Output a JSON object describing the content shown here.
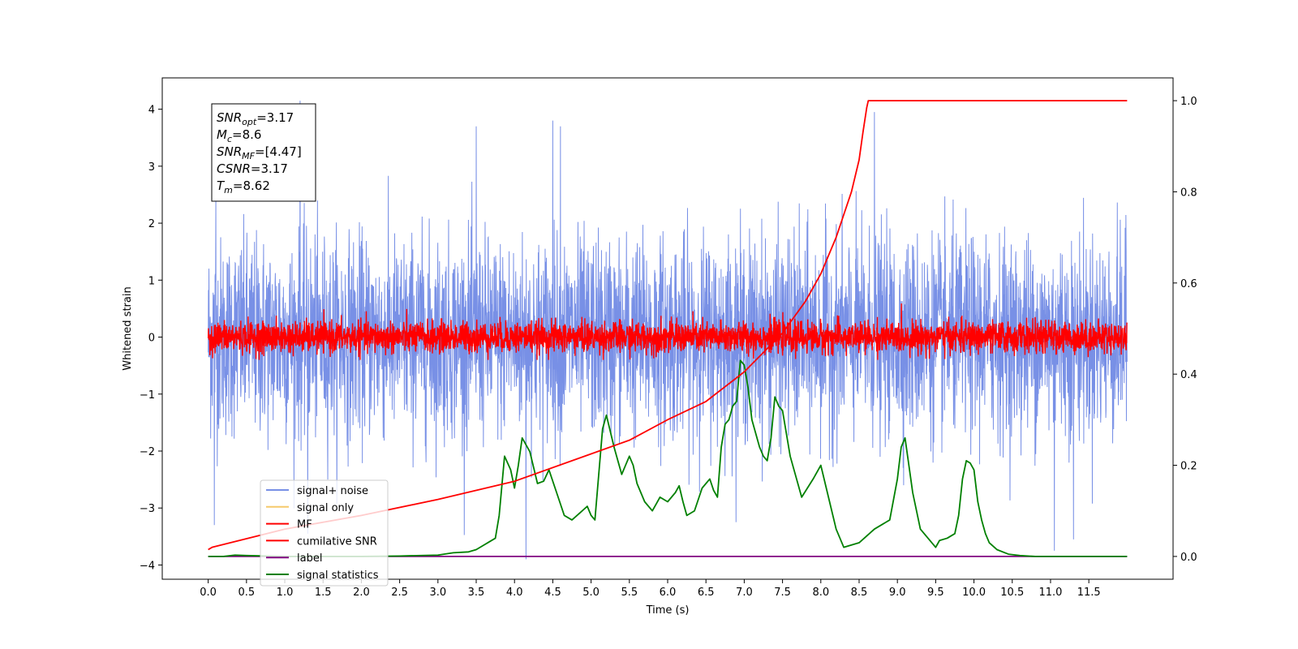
{
  "chart_data": {
    "type": "line",
    "xlabel": "Time (s)",
    "ylabel": "Whitened strain",
    "xlim": [
      -0.6,
      12.6
    ],
    "ylim": [
      -4.25,
      4.55
    ],
    "ylim_right": [
      -0.05,
      1.05
    ],
    "x_ticks": [
      "0.0",
      "0.5",
      "1.0",
      "1.5",
      "2.0",
      "2.5",
      "3.0",
      "3.5",
      "4.0",
      "4.5",
      "5.0",
      "5.5",
      "6.0",
      "6.5",
      "7.0",
      "7.5",
      "8.0",
      "8.5",
      "9.0",
      "9.5",
      "10.0",
      "10.5",
      "11.0",
      "11.5"
    ],
    "y_ticks_left": [
      "4",
      "3",
      "2",
      "1",
      "0",
      "−1",
      "−2",
      "−3",
      "−4"
    ],
    "y_ticks_right": [
      "1.0",
      "0.8",
      "0.6",
      "0.4",
      "0.2",
      "0.0"
    ],
    "annotation": [
      {
        "main": "SNR",
        "sub": "opt",
        "value": "=3.17"
      },
      {
        "main": "M",
        "sub": "c",
        "value": "=8.6"
      },
      {
        "main": "SNR",
        "sub": "MF",
        "value": "=[4.47]"
      },
      {
        "main": "CSNR",
        "sub": "",
        "value": "=3.17"
      },
      {
        "main": "T",
        "sub": "m",
        "value": "=8.62"
      }
    ],
    "legend": {
      "placement": "lower-left",
      "entries": [
        {
          "label": "signal+ noise",
          "color": "#7890e6"
        },
        {
          "label": "signal only",
          "color": "#f5c96a"
        },
        {
          "label": "MF",
          "color": "#ff0000"
        },
        {
          "label": "cumilative SNR",
          "color": "#ff0000"
        },
        {
          "label": "label",
          "color": "#800080"
        },
        {
          "label": "signal statistics",
          "color": "#008000"
        }
      ]
    },
    "series": [
      {
        "name": "signal+ noise",
        "axis": "left",
        "color": "#7890e6",
        "x_range": [
          0.0,
          12.0
        ],
        "typical_amplitude": 1.2,
        "peak_range": [
          -3.9,
          4.15
        ],
        "peaks": [
          [
            0.1,
            2.5
          ],
          [
            1.2,
            4.15
          ],
          [
            3.5,
            3.7
          ],
          [
            4.5,
            3.8
          ],
          [
            4.6,
            3.7
          ],
          [
            8.7,
            3.95
          ],
          [
            4.15,
            -3.9
          ],
          [
            1.3,
            -3.45
          ],
          [
            0.08,
            -3.3
          ],
          [
            11.05,
            -3.75
          ],
          [
            11.3,
            -3.55
          ]
        ]
      },
      {
        "name": "MF",
        "axis": "left",
        "color": "#ff0000",
        "x_range": [
          0.0,
          12.0
        ],
        "typical_amplitude": 0.25,
        "peak_range": [
          -0.4,
          1.0
        ]
      },
      {
        "name": "cumilative SNR",
        "axis": "right",
        "color": "#ff0000",
        "x": [
          0.0,
          0.05,
          1.0,
          2.0,
          3.0,
          4.0,
          5.0,
          5.5,
          6.0,
          6.5,
          7.0,
          7.5,
          7.8,
          8.0,
          8.2,
          8.4,
          8.5,
          8.55,
          8.6,
          8.62,
          12.0
        ],
        "y": [
          0.015,
          0.02,
          0.06,
          0.09,
          0.125,
          0.165,
          0.225,
          0.255,
          0.3,
          0.34,
          0.405,
          0.49,
          0.56,
          0.62,
          0.7,
          0.8,
          0.87,
          0.93,
          0.985,
          1.0,
          1.0
        ]
      },
      {
        "name": "label",
        "axis": "right",
        "color": "#800080",
        "x": [
          0.0,
          12.0
        ],
        "y": [
          0.0,
          0.0
        ]
      },
      {
        "name": "signal statistics",
        "axis": "right",
        "color": "#008000",
        "x": [
          0.0,
          0.2,
          0.35,
          0.5,
          1.0,
          2.0,
          2.5,
          3.0,
          3.2,
          3.4,
          3.5,
          3.6,
          3.65,
          3.75,
          3.8,
          3.87,
          3.95,
          4.0,
          4.05,
          4.1,
          4.2,
          4.3,
          4.38,
          4.45,
          4.55,
          4.65,
          4.75,
          4.85,
          4.95,
          5.0,
          5.05,
          5.1,
          5.15,
          5.2,
          5.3,
          5.4,
          5.45,
          5.5,
          5.55,
          5.6,
          5.7,
          5.8,
          5.85,
          5.9,
          6.0,
          6.1,
          6.15,
          6.2,
          6.25,
          6.35,
          6.45,
          6.55,
          6.6,
          6.65,
          6.7,
          6.75,
          6.8,
          6.85,
          6.9,
          6.95,
          7.0,
          7.05,
          7.1,
          7.15,
          7.2,
          7.25,
          7.3,
          7.35,
          7.4,
          7.45,
          7.5,
          7.6,
          7.75,
          7.9,
          8.0,
          8.1,
          8.2,
          8.3,
          8.5,
          8.7,
          8.8,
          8.85,
          8.9,
          9.0,
          9.05,
          9.1,
          9.15,
          9.2,
          9.3,
          9.4,
          9.5,
          9.55,
          9.65,
          9.75,
          9.8,
          9.85,
          9.9,
          9.95,
          10.0,
          10.05,
          10.1,
          10.15,
          10.2,
          10.3,
          10.45,
          10.6,
          10.8,
          11.0,
          11.5,
          12.0
        ],
        "y": [
          0.0,
          0.0,
          0.003,
          0.002,
          0.0,
          0.0,
          0.001,
          0.003,
          0.008,
          0.01,
          0.015,
          0.025,
          0.03,
          0.04,
          0.09,
          0.22,
          0.19,
          0.15,
          0.2,
          0.26,
          0.23,
          0.16,
          0.165,
          0.19,
          0.14,
          0.09,
          0.08,
          0.095,
          0.11,
          0.09,
          0.08,
          0.18,
          0.28,
          0.31,
          0.24,
          0.18,
          0.2,
          0.22,
          0.2,
          0.16,
          0.12,
          0.1,
          0.115,
          0.13,
          0.12,
          0.14,
          0.155,
          0.12,
          0.09,
          0.1,
          0.15,
          0.17,
          0.145,
          0.13,
          0.24,
          0.29,
          0.3,
          0.33,
          0.34,
          0.43,
          0.42,
          0.37,
          0.3,
          0.27,
          0.24,
          0.22,
          0.21,
          0.26,
          0.35,
          0.33,
          0.32,
          0.22,
          0.13,
          0.17,
          0.2,
          0.13,
          0.06,
          0.02,
          0.03,
          0.06,
          0.07,
          0.075,
          0.08,
          0.17,
          0.24,
          0.26,
          0.2,
          0.14,
          0.06,
          0.04,
          0.02,
          0.035,
          0.04,
          0.05,
          0.09,
          0.17,
          0.21,
          0.205,
          0.19,
          0.12,
          0.08,
          0.05,
          0.03,
          0.015,
          0.005,
          0.002,
          0.0,
          0.0,
          0.0,
          0.0
        ]
      }
    ]
  }
}
